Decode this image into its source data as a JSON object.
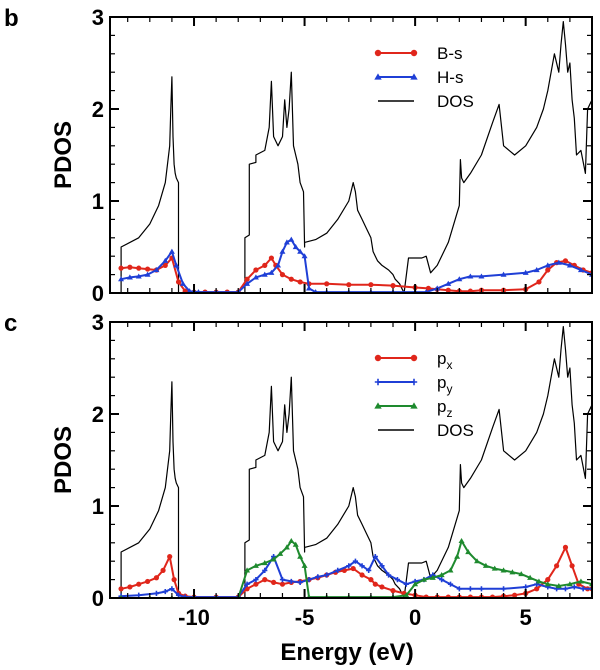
{
  "figure": {
    "xlabel": "Energy (eV)"
  },
  "chart_data": [
    {
      "panel": "b",
      "type": "line",
      "ylabel": "PDOS",
      "xlim": [
        -13.8,
        8
      ],
      "ylim": [
        0,
        3
      ],
      "xticks": [
        -10,
        -5,
        0,
        5
      ],
      "yticks": [
        0,
        1,
        2,
        3
      ],
      "xtick_labels": [
        "-10",
        "-5",
        "0",
        "5"
      ],
      "ytick_labels": [
        "0",
        "1",
        "2",
        "3"
      ],
      "legend_position": "top-right",
      "series": [
        {
          "name": "B-s",
          "label": "B-s",
          "color": "#e0261b",
          "marker": "circle",
          "x": [
            -13.3,
            -12.9,
            -12.5,
            -12.1,
            -11.7,
            -11.3,
            -11.0,
            -10.7,
            -10.4,
            -10.0,
            -9.5,
            -9.0,
            -8.5,
            -8.0,
            -7.6,
            -7.2,
            -6.8,
            -6.5,
            -6.3,
            -6.0,
            -5.6,
            -5.2,
            -4.8,
            -4.0,
            -3.0,
            -2.0,
            -1.0,
            0.0,
            0.6,
            1.0,
            1.5,
            2.0,
            2.5,
            3.0,
            4.0,
            5.0,
            5.6,
            6.0,
            6.4,
            6.8,
            7.2,
            7.6,
            8.0
          ],
          "y": [
            0.27,
            0.28,
            0.27,
            0.26,
            0.25,
            0.3,
            0.38,
            0.12,
            0.02,
            0.01,
            0.01,
            0.01,
            0.01,
            0.01,
            0.15,
            0.25,
            0.3,
            0.38,
            0.3,
            0.2,
            0.15,
            0.12,
            0.1,
            0.1,
            0.09,
            0.09,
            0.08,
            0.06,
            0.05,
            0.04,
            0.03,
            0.02,
            0.02,
            0.03,
            0.03,
            0.04,
            0.12,
            0.25,
            0.33,
            0.35,
            0.3,
            0.25,
            0.22
          ]
        },
        {
          "name": "H-s",
          "label": "H-s",
          "color": "#1f3fd6",
          "marker": "triangle",
          "x": [
            -13.3,
            -12.9,
            -12.5,
            -12.1,
            -11.7,
            -11.3,
            -11.0,
            -10.8,
            -10.5,
            -10.2,
            -9.8,
            -9.0,
            -8.0,
            -7.6,
            -7.2,
            -6.8,
            -6.5,
            -6.2,
            -6.0,
            -5.8,
            -5.6,
            -5.4,
            -5.2,
            -5.0,
            -4.8,
            -4.5,
            -4.0,
            -3.0,
            -2.0,
            -1.0,
            0.0,
            0.5,
            1.0,
            1.5,
            2.0,
            2.5,
            3.0,
            4.0,
            5.0,
            5.5,
            6.0,
            6.5,
            7.0,
            7.5,
            8.0
          ],
          "y": [
            0.15,
            0.17,
            0.18,
            0.2,
            0.25,
            0.35,
            0.45,
            0.3,
            0.1,
            0.02,
            0.01,
            0.01,
            0.01,
            0.1,
            0.17,
            0.2,
            0.22,
            0.3,
            0.45,
            0.55,
            0.58,
            0.5,
            0.45,
            0.4,
            0.05,
            0.01,
            0.01,
            0.01,
            0.01,
            0.01,
            0.01,
            0.01,
            0.05,
            0.1,
            0.15,
            0.18,
            0.18,
            0.2,
            0.22,
            0.25,
            0.3,
            0.33,
            0.3,
            0.25,
            0.2
          ]
        },
        {
          "name": "DOS",
          "label": "DOS",
          "color": "#000000",
          "marker": "none",
          "x": [
            -13.4,
            -13.3,
            -13.3,
            -12.5,
            -12.0,
            -11.6,
            -11.3,
            -11.2,
            -11.1,
            -11.05,
            -11.0,
            -10.95,
            -10.9,
            -10.85,
            -10.8,
            -10.7,
            -10.7,
            -10.6,
            -7.8,
            -7.7,
            -7.7,
            -7.5,
            -7.5,
            -7.2,
            -7.2,
            -6.8,
            -6.6,
            -6.5,
            -6.4,
            -6.2,
            -6.0,
            -5.9,
            -5.8,
            -5.7,
            -5.6,
            -5.5,
            -5.4,
            -5.3,
            -5.2,
            -5.05,
            -5.0,
            -5.0,
            -4.5,
            -4.0,
            -3.5,
            -3.0,
            -2.8,
            -2.7,
            -2.6,
            -2.4,
            -2.2,
            -2.0,
            -1.9,
            -1.8,
            -1.7,
            -1.5,
            -1.2,
            -1.0,
            -0.9,
            -0.7,
            -0.5,
            -0.3,
            0.3,
            0.5,
            0.7,
            1.0,
            1.5,
            2.0,
            2.05,
            2.1,
            2.2,
            2.5,
            3.0,
            3.5,
            3.8,
            4.0,
            4.5,
            5.0,
            5.5,
            5.8,
            6.0,
            6.3,
            6.5,
            6.6,
            6.7,
            6.8,
            6.9,
            7.0,
            7.1,
            7.2,
            7.3,
            7.5,
            7.7,
            7.8,
            8.0
          ],
          "y": [
            0.0,
            0.0,
            0.5,
            0.6,
            0.75,
            0.95,
            1.2,
            1.4,
            1.6,
            2.0,
            2.35,
            1.7,
            1.4,
            1.3,
            1.25,
            1.2,
            0.0,
            0.0,
            0.0,
            0.0,
            0.6,
            0.63,
            1.4,
            1.42,
            1.5,
            1.55,
            1.8,
            2.3,
            1.7,
            1.6,
            1.7,
            2.1,
            1.8,
            2.0,
            2.4,
            1.6,
            1.5,
            1.4,
            1.2,
            1.1,
            0.5,
            0.55,
            0.58,
            0.65,
            0.8,
            1.0,
            1.2,
            1.1,
            0.9,
            0.8,
            0.7,
            0.6,
            0.45,
            0.4,
            0.35,
            0.3,
            0.25,
            0.2,
            0.15,
            0.1,
            0.0,
            0.38,
            0.38,
            0.4,
            0.22,
            0.3,
            0.55,
            0.95,
            1.45,
            1.25,
            1.2,
            1.3,
            1.5,
            1.85,
            2.05,
            1.6,
            1.5,
            1.6,
            1.8,
            2.0,
            2.2,
            2.6,
            2.4,
            2.7,
            2.95,
            2.7,
            2.4,
            2.5,
            2.1,
            1.9,
            1.5,
            1.55,
            1.3,
            2.0,
            2.1
          ]
        }
      ]
    },
    {
      "panel": "c",
      "type": "line",
      "ylabel": "PDOS",
      "xlim": [
        -13.8,
        8
      ],
      "ylim": [
        0,
        3
      ],
      "xticks": [
        -10,
        -5,
        0,
        5
      ],
      "yticks": [
        0,
        1,
        2,
        3
      ],
      "xtick_labels": [
        "-10",
        "-5",
        "0",
        "5"
      ],
      "ytick_labels": [
        "0",
        "1",
        "2",
        "3"
      ],
      "legend_position": "top-right",
      "series": [
        {
          "name": "px",
          "label": "p",
          "subscript": "x",
          "color": "#e0261b",
          "marker": "circle",
          "x": [
            -13.3,
            -12.9,
            -12.5,
            -12.1,
            -11.7,
            -11.4,
            -11.1,
            -10.9,
            -10.7,
            -10.4,
            -10.0,
            -9.0,
            -8.0,
            -7.6,
            -7.2,
            -6.8,
            -6.4,
            -6.0,
            -5.6,
            -5.2,
            -4.8,
            -4.4,
            -4.0,
            -3.6,
            -3.2,
            -2.8,
            -2.4,
            -2.0,
            -1.8,
            -1.5,
            -1.0,
            -0.5,
            0.0,
            0.5,
            1.0,
            1.5,
            2.0,
            2.5,
            3.0,
            3.5,
            4.0,
            4.5,
            5.0,
            5.5,
            6.0,
            6.4,
            6.8,
            7.1,
            7.4,
            7.8,
            8.0
          ],
          "y": [
            0.1,
            0.12,
            0.15,
            0.18,
            0.22,
            0.3,
            0.45,
            0.2,
            0.05,
            0.02,
            0.01,
            0.01,
            0.01,
            0.1,
            0.15,
            0.2,
            0.17,
            0.15,
            0.17,
            0.18,
            0.2,
            0.22,
            0.25,
            0.28,
            0.3,
            0.32,
            0.25,
            0.2,
            0.15,
            0.12,
            0.08,
            0.05,
            0.03,
            0.01,
            0.01,
            0.01,
            0.01,
            0.01,
            0.01,
            0.01,
            0.02,
            0.03,
            0.05,
            0.1,
            0.2,
            0.35,
            0.55,
            0.35,
            0.15,
            0.1,
            0.1
          ]
        },
        {
          "name": "py",
          "label": "p",
          "subscript": "y",
          "color": "#1f3fd6",
          "marker": "plus",
          "x": [
            -13.3,
            -12.5,
            -11.7,
            -11.3,
            -11.0,
            -10.7,
            -10.4,
            -10.0,
            -9.0,
            -8.0,
            -7.6,
            -7.2,
            -6.8,
            -6.4,
            -6.0,
            -5.6,
            -5.2,
            -4.8,
            -4.4,
            -4.0,
            -3.5,
            -3.0,
            -2.7,
            -2.4,
            -2.1,
            -1.8,
            -1.5,
            -1.2,
            -0.8,
            -0.4,
            0.0,
            0.4,
            0.8,
            1.2,
            1.6,
            2.0,
            2.5,
            3.0,
            4.0,
            5.0,
            5.5,
            6.0,
            6.4,
            6.8,
            7.2,
            7.6,
            8.0
          ],
          "y": [
            0.02,
            0.03,
            0.05,
            0.07,
            0.1,
            0.03,
            0.01,
            0.01,
            0.01,
            0.01,
            0.15,
            0.2,
            0.3,
            0.45,
            0.2,
            0.18,
            0.17,
            0.2,
            0.23,
            0.25,
            0.3,
            0.35,
            0.4,
            0.35,
            0.3,
            0.45,
            0.35,
            0.25,
            0.2,
            0.15,
            0.18,
            0.2,
            0.25,
            0.2,
            0.15,
            0.1,
            0.1,
            0.1,
            0.1,
            0.12,
            0.15,
            0.12,
            0.1,
            0.1,
            0.12,
            0.1,
            0.1
          ]
        },
        {
          "name": "pz",
          "label": "p",
          "subscript": "z",
          "color": "#1e8a2e",
          "marker": "triangle",
          "x": [
            -13.3,
            -12.0,
            -11.0,
            -10.0,
            -9.0,
            -8.0,
            -7.6,
            -7.2,
            -6.8,
            -6.4,
            -6.1,
            -5.8,
            -5.6,
            -5.4,
            -5.2,
            -5.0,
            -4.8,
            -4.0,
            -3.0,
            -2.0,
            -1.0,
            -0.4,
            0.0,
            0.4,
            0.8,
            1.2,
            1.6,
            1.9,
            2.1,
            2.4,
            2.8,
            3.2,
            3.6,
            4.0,
            4.4,
            4.8,
            5.2,
            5.6,
            6.0,
            6.5,
            7.0,
            7.5,
            8.0
          ],
          "y": [
            0.0,
            0.0,
            0.0,
            0.0,
            0.0,
            0.0,
            0.3,
            0.35,
            0.38,
            0.42,
            0.48,
            0.55,
            0.62,
            0.58,
            0.45,
            0.35,
            0.01,
            0.01,
            0.01,
            0.01,
            0.01,
            0.03,
            0.15,
            0.2,
            0.22,
            0.25,
            0.3,
            0.45,
            0.62,
            0.5,
            0.4,
            0.35,
            0.32,
            0.3,
            0.28,
            0.26,
            0.22,
            0.18,
            0.15,
            0.13,
            0.15,
            0.18,
            0.15
          ]
        },
        {
          "name": "DOS",
          "label": "DOS",
          "color": "#000000",
          "marker": "none",
          "x": [
            -13.4,
            -13.3,
            -13.3,
            -12.5,
            -12.0,
            -11.6,
            -11.3,
            -11.2,
            -11.1,
            -11.05,
            -11.0,
            -10.95,
            -10.9,
            -10.85,
            -10.8,
            -10.7,
            -10.7,
            -10.6,
            -7.8,
            -7.7,
            -7.7,
            -7.5,
            -7.5,
            -7.2,
            -7.2,
            -6.8,
            -6.6,
            -6.5,
            -6.4,
            -6.2,
            -6.0,
            -5.9,
            -5.8,
            -5.7,
            -5.6,
            -5.5,
            -5.4,
            -5.3,
            -5.2,
            -5.05,
            -5.0,
            -5.0,
            -4.5,
            -4.0,
            -3.5,
            -3.0,
            -2.8,
            -2.7,
            -2.6,
            -2.4,
            -2.2,
            -2.0,
            -1.9,
            -1.8,
            -1.7,
            -1.5,
            -1.2,
            -1.0,
            -0.9,
            -0.7,
            -0.5,
            -0.3,
            0.3,
            0.5,
            0.7,
            1.0,
            1.5,
            2.0,
            2.05,
            2.1,
            2.2,
            2.5,
            3.0,
            3.5,
            3.8,
            4.0,
            4.5,
            5.0,
            5.5,
            5.8,
            6.0,
            6.3,
            6.5,
            6.6,
            6.7,
            6.8,
            6.9,
            7.0,
            7.1,
            7.2,
            7.3,
            7.5,
            7.7,
            7.8,
            8.0
          ],
          "y": [
            0.0,
            0.0,
            0.5,
            0.6,
            0.75,
            0.95,
            1.2,
            1.4,
            1.6,
            2.0,
            2.35,
            1.7,
            1.4,
            1.3,
            1.25,
            1.2,
            0.0,
            0.0,
            0.0,
            0.0,
            0.6,
            0.63,
            1.4,
            1.42,
            1.5,
            1.55,
            1.8,
            2.3,
            1.7,
            1.6,
            1.7,
            2.1,
            1.8,
            2.0,
            2.4,
            1.6,
            1.5,
            1.4,
            1.2,
            1.1,
            0.5,
            0.55,
            0.58,
            0.65,
            0.8,
            1.0,
            1.2,
            1.1,
            0.9,
            0.8,
            0.7,
            0.6,
            0.45,
            0.4,
            0.35,
            0.3,
            0.25,
            0.2,
            0.15,
            0.1,
            0.0,
            0.38,
            0.38,
            0.4,
            0.22,
            0.3,
            0.55,
            0.95,
            1.45,
            1.25,
            1.2,
            1.3,
            1.5,
            1.85,
            2.05,
            1.6,
            1.5,
            1.6,
            1.8,
            2.0,
            2.2,
            2.6,
            2.4,
            2.7,
            2.95,
            2.7,
            2.4,
            2.5,
            2.1,
            1.9,
            1.5,
            1.55,
            1.3,
            2.0,
            2.1
          ]
        }
      ]
    }
  ]
}
